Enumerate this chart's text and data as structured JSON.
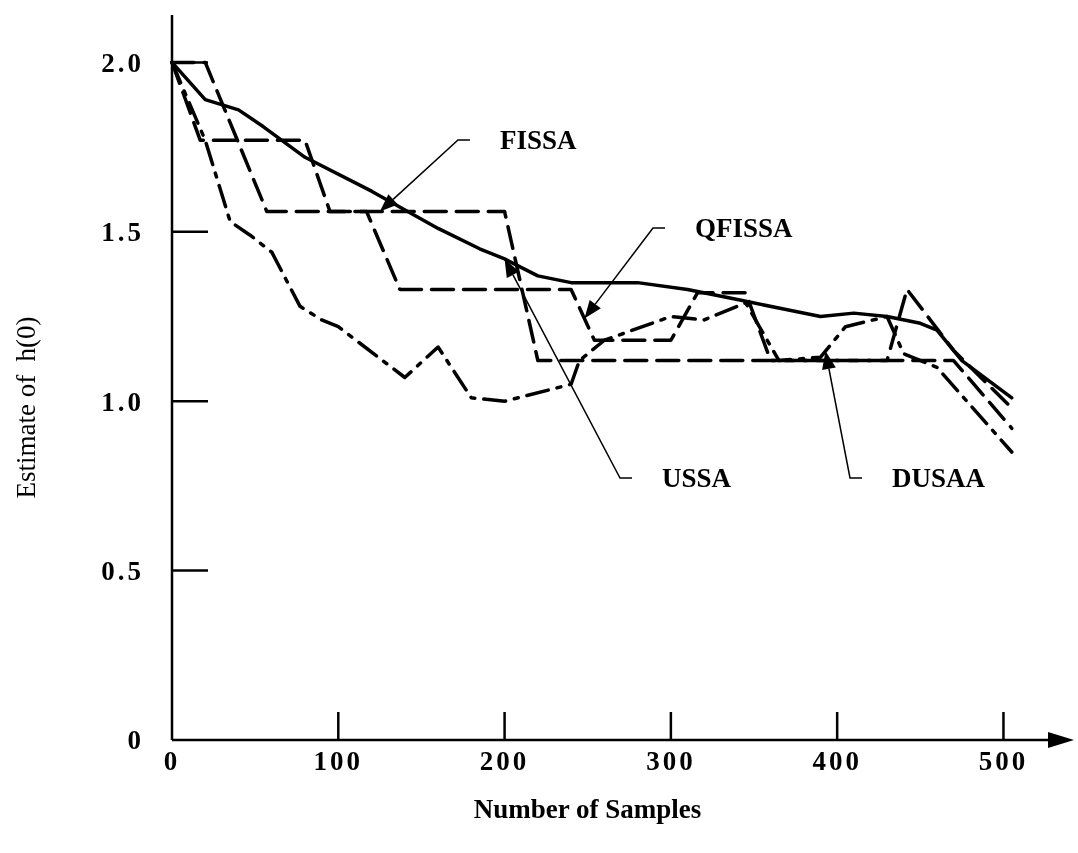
{
  "chart_data": {
    "type": "line",
    "xlabel": "Number of Samples",
    "ylabel": "Estimate of  h(0)",
    "xlim": [
      0,
      534
    ],
    "ylim": [
      0,
      2.14
    ],
    "xticks": [
      0,
      100,
      200,
      300,
      400,
      500
    ],
    "yticks": [
      0,
      0.5,
      {
        "value": 1,
        "label": "1.0"
      },
      1.5,
      {
        "value": 2,
        "label": "2.0"
      }
    ],
    "grid": false,
    "legend": false,
    "marker": "none",
    "series": [
      {
        "name": "FISSA",
        "color": "#000000",
        "line_style": "dashed",
        "x": [
          0,
          20,
          57,
          200,
          220,
          470,
          505
        ],
        "values": [
          2.0,
          2.0,
          1.56,
          1.56,
          1.12,
          1.12,
          0.92
        ]
      },
      {
        "name": "QFISSA",
        "color": "#000000",
        "line_style": "dashed",
        "x": [
          0,
          17,
          80,
          95,
          117,
          137,
          240,
          254,
          300,
          316,
          345,
          360,
          430,
          442,
          470,
          505
        ],
        "values": [
          2.0,
          1.77,
          1.77,
          1.56,
          1.56,
          1.33,
          1.33,
          1.18,
          1.18,
          1.32,
          1.32,
          1.12,
          1.12,
          1.33,
          1.15,
          0.98
        ]
      },
      {
        "name": "USSA",
        "color": "#000000",
        "line_style": "solid",
        "x": [
          0,
          20,
          40,
          55,
          80,
          120,
          160,
          185,
          200,
          220,
          240,
          280,
          310,
          340,
          370,
          390,
          410,
          430,
          450,
          460,
          475,
          505
        ],
        "values": [
          2.0,
          1.89,
          1.86,
          1.81,
          1.72,
          1.62,
          1.51,
          1.45,
          1.42,
          1.37,
          1.35,
          1.35,
          1.33,
          1.3,
          1.27,
          1.25,
          1.26,
          1.25,
          1.23,
          1.21,
          1.12,
          1.01
        ]
      },
      {
        "name": "DUSAA",
        "color": "#000000",
        "line_style": "dashdot",
        "x": [
          0,
          20,
          35,
          47,
          60,
          77,
          90,
          100,
          140,
          160,
          180,
          200,
          240,
          245,
          260,
          300,
          320,
          345,
          365,
          390,
          405,
          430,
          440,
          460,
          505
        ],
        "values": [
          2.0,
          1.77,
          1.53,
          1.49,
          1.44,
          1.28,
          1.24,
          1.22,
          1.07,
          1.16,
          1.01,
          1.0,
          1.05,
          1.12,
          1.18,
          1.25,
          1.24,
          1.29,
          1.12,
          1.13,
          1.22,
          1.25,
          1.14,
          1.1,
          0.85
        ]
      }
    ]
  }
}
